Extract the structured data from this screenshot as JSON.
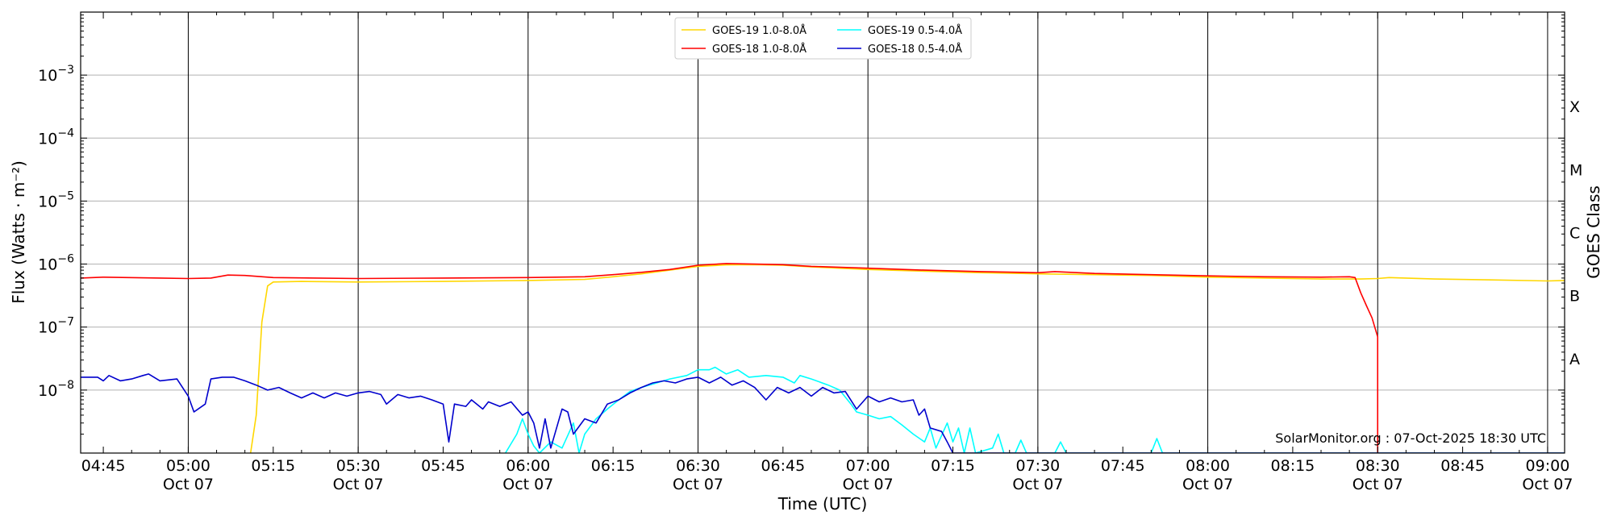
{
  "chart_data": {
    "type": "line",
    "title": "",
    "xlabel": "Time (UTC)",
    "ylabel": "Flux (Watts · m⁻²)",
    "y2label": "GOES Class",
    "yscale": "log",
    "ylim": [
      1e-09,
      0.01
    ],
    "xlim": [
      "04:41",
      "09:03"
    ],
    "grid": "horizontal",
    "legend_position": "top-center",
    "x_tick_labels": [
      {
        "t": "04:45",
        "top": "04:45",
        "bottom": ""
      },
      {
        "t": "05:00",
        "top": "05:00",
        "bottom": "Oct 07"
      },
      {
        "t": "05:15",
        "top": "05:15",
        "bottom": ""
      },
      {
        "t": "05:30",
        "top": "05:30",
        "bottom": "Oct 07"
      },
      {
        "t": "05:45",
        "top": "05:45",
        "bottom": ""
      },
      {
        "t": "06:00",
        "top": "06:00",
        "bottom": "Oct 07"
      },
      {
        "t": "06:15",
        "top": "06:15",
        "bottom": ""
      },
      {
        "t": "06:30",
        "top": "06:30",
        "bottom": "Oct 07"
      },
      {
        "t": "06:45",
        "top": "06:45",
        "bottom": ""
      },
      {
        "t": "07:00",
        "top": "07:00",
        "bottom": "Oct 07"
      },
      {
        "t": "07:15",
        "top": "07:15",
        "bottom": ""
      },
      {
        "t": "07:30",
        "top": "07:30",
        "bottom": "Oct 07"
      },
      {
        "t": "07:45",
        "top": "07:45",
        "bottom": ""
      },
      {
        "t": "08:00",
        "top": "08:00",
        "bottom": "Oct 07"
      },
      {
        "t": "08:15",
        "top": "08:15",
        "bottom": ""
      },
      {
        "t": "08:30",
        "top": "08:30",
        "bottom": "Oct 07"
      },
      {
        "t": "08:45",
        "top": "08:45",
        "bottom": ""
      },
      {
        "t": "09:00",
        "top": "09:00",
        "bottom": "Oct 07"
      }
    ],
    "vertical_lines": [
      "05:00",
      "05:30",
      "06:00",
      "06:30",
      "07:00",
      "07:30",
      "08:00",
      "08:30",
      "09:00"
    ],
    "y_tick_labels": [
      {
        "value": 1e-08,
        "base": "10",
        "exp": "−8"
      },
      {
        "value": 1e-07,
        "base": "10",
        "exp": "−7"
      },
      {
        "value": 1e-06,
        "base": "10",
        "exp": "−6"
      },
      {
        "value": 1e-05,
        "base": "10",
        "exp": "−5"
      },
      {
        "value": 0.0001,
        "base": "10",
        "exp": "−4"
      },
      {
        "value": 0.001,
        "base": "10",
        "exp": "−3"
      }
    ],
    "goes_classes": [
      {
        "label": "A",
        "value": 1e-08
      },
      {
        "label": "B",
        "value": 1e-07
      },
      {
        "label": "C",
        "value": 1e-06
      },
      {
        "label": "M",
        "value": 1e-05
      },
      {
        "label": "X",
        "value": 0.0001
      }
    ],
    "series": [
      {
        "name": "GOES-19 1.0-8.0Å",
        "color": "#ffd700",
        "points": [
          [
            "05:11",
            1e-09
          ],
          [
            "05:12",
            4e-09
          ],
          [
            "05:13",
            1.2e-07
          ],
          [
            "05:14",
            4.5e-07
          ],
          [
            "05:15",
            5.2e-07
          ],
          [
            "05:20",
            5.3e-07
          ],
          [
            "05:30",
            5.2e-07
          ],
          [
            "05:45",
            5.3e-07
          ],
          [
            "06:00",
            5.5e-07
          ],
          [
            "06:10",
            5.7e-07
          ],
          [
            "06:15",
            6.3e-07
          ],
          [
            "06:20",
            7e-07
          ],
          [
            "06:25",
            8e-07
          ],
          [
            "06:30",
            9.2e-07
          ],
          [
            "06:35",
            9.7e-07
          ],
          [
            "06:40",
            9.8e-07
          ],
          [
            "06:45",
            9.6e-07
          ],
          [
            "06:50",
            9e-07
          ],
          [
            "07:00",
            8.2e-07
          ],
          [
            "07:10",
            7.7e-07
          ],
          [
            "07:20",
            7.3e-07
          ],
          [
            "07:30",
            7e-07
          ],
          [
            "07:40",
            6.8e-07
          ],
          [
            "07:50",
            6.6e-07
          ],
          [
            "08:00",
            6.2e-07
          ],
          [
            "08:10",
            6e-07
          ],
          [
            "08:20",
            5.8e-07
          ],
          [
            "08:27",
            5.8e-07
          ],
          [
            "08:30",
            5.9e-07
          ],
          [
            "08:32",
            6.1e-07
          ],
          [
            "08:40",
            5.8e-07
          ],
          [
            "08:50",
            5.6e-07
          ],
          [
            "09:00",
            5.4e-07
          ],
          [
            "09:03",
            5.5e-07
          ]
        ]
      },
      {
        "name": "GOES-18 1.0-8.0Å",
        "color": "#ff0000",
        "points": [
          [
            "04:41",
            6e-07
          ],
          [
            "04:45",
            6.2e-07
          ],
          [
            "04:55",
            6e-07
          ],
          [
            "05:00",
            5.9e-07
          ],
          [
            "05:04",
            6e-07
          ],
          [
            "05:07",
            6.7e-07
          ],
          [
            "05:10",
            6.6e-07
          ],
          [
            "05:15",
            6.1e-07
          ],
          [
            "05:30",
            5.9e-07
          ],
          [
            "05:45",
            6e-07
          ],
          [
            "06:00",
            6.1e-07
          ],
          [
            "06:10",
            6.3e-07
          ],
          [
            "06:15",
            6.8e-07
          ],
          [
            "06:20",
            7.4e-07
          ],
          [
            "06:25",
            8.2e-07
          ],
          [
            "06:30",
            9.6e-07
          ],
          [
            "06:35",
            1.02e-06
          ],
          [
            "06:40",
            1e-06
          ],
          [
            "06:45",
            9.8e-07
          ],
          [
            "06:50",
            9.2e-07
          ],
          [
            "07:00",
            8.6e-07
          ],
          [
            "07:10",
            8e-07
          ],
          [
            "07:20",
            7.6e-07
          ],
          [
            "07:30",
            7.3e-07
          ],
          [
            "07:33",
            7.6e-07
          ],
          [
            "07:40",
            7.1e-07
          ],
          [
            "07:50",
            6.8e-07
          ],
          [
            "08:00",
            6.5e-07
          ],
          [
            "08:10",
            6.3e-07
          ],
          [
            "08:20",
            6.2e-07
          ],
          [
            "08:25",
            6.3e-07
          ],
          [
            "08:26",
            6.1e-07
          ],
          [
            "08:27",
            3.5e-07
          ],
          [
            "08:28",
            2.2e-07
          ],
          [
            "08:29",
            1.4e-07
          ],
          [
            "08:30",
            7e-08
          ],
          [
            "08:30",
            1e-09
          ]
        ]
      },
      {
        "name": "GOES-19 0.5-4.0Å",
        "color": "#00ffff",
        "points": [
          [
            "05:56",
            1e-09
          ],
          [
            "05:58",
            2e-09
          ],
          [
            "05:59",
            3.5e-09
          ],
          [
            "06:00",
            2e-09
          ],
          [
            "06:01",
            1.3e-09
          ],
          [
            "06:02",
            1e-09
          ],
          [
            "06:04",
            1.5e-09
          ],
          [
            "06:06",
            1.2e-09
          ],
          [
            "06:08",
            3e-09
          ],
          [
            "06:09",
            1e-09
          ],
          [
            "06:10",
            2e-09
          ],
          [
            "06:12",
            3.5e-09
          ],
          [
            "06:14",
            5e-09
          ],
          [
            "06:16",
            7e-09
          ],
          [
            "06:18",
            9.5e-09
          ],
          [
            "06:20",
            1.1e-08
          ],
          [
            "06:25",
            1.5e-08
          ],
          [
            "06:28",
            1.7e-08
          ],
          [
            "06:30",
            2.1e-08
          ],
          [
            "06:32",
            2.1e-08
          ],
          [
            "06:33",
            2.3e-08
          ],
          [
            "06:35",
            1.8e-08
          ],
          [
            "06:37",
            2.1e-08
          ],
          [
            "06:39",
            1.6e-08
          ],
          [
            "06:42",
            1.7e-08
          ],
          [
            "06:45",
            1.6e-08
          ],
          [
            "06:47",
            1.3e-08
          ],
          [
            "06:48",
            1.7e-08
          ],
          [
            "06:50",
            1.5e-08
          ],
          [
            "06:53",
            1.2e-08
          ],
          [
            "06:55",
            1e-08
          ],
          [
            "06:57",
            6e-09
          ],
          [
            "06:58",
            4.5e-09
          ],
          [
            "07:00",
            4e-09
          ],
          [
            "07:02",
            3.5e-09
          ],
          [
            "07:04",
            3.8e-09
          ],
          [
            "07:06",
            2.8e-09
          ],
          [
            "07:08",
            2e-09
          ],
          [
            "07:10",
            1.5e-09
          ],
          [
            "07:11",
            2.5e-09
          ],
          [
            "07:12",
            1.2e-09
          ],
          [
            "07:14",
            3e-09
          ],
          [
            "07:15",
            1.5e-09
          ],
          [
            "07:16",
            2.5e-09
          ],
          [
            "07:17",
            1e-09
          ],
          [
            "07:18",
            2.5e-09
          ],
          [
            "07:19",
            1e-09
          ],
          [
            "07:22",
            1.2e-09
          ],
          [
            "07:23",
            2e-09
          ],
          [
            "07:24",
            1e-09
          ],
          [
            "07:26",
            1e-09
          ],
          [
            "07:27",
            1.6e-09
          ],
          [
            "07:28",
            1e-09
          ],
          [
            "07:33",
            1e-09
          ],
          [
            "07:34",
            1.5e-09
          ],
          [
            "07:35",
            1e-09
          ],
          [
            "07:50",
            1e-09
          ],
          [
            "07:51",
            1.7e-09
          ],
          [
            "07:52",
            1e-09
          ],
          [
            "09:03",
            1e-09
          ]
        ]
      },
      {
        "name": "GOES-18 0.5-4.0Å",
        "color": "#0000cd",
        "points": [
          [
            "04:41",
            1.6e-08
          ],
          [
            "04:44",
            1.6e-08
          ],
          [
            "04:45",
            1.4e-08
          ],
          [
            "04:46",
            1.7e-08
          ],
          [
            "04:48",
            1.4e-08
          ],
          [
            "04:50",
            1.5e-08
          ],
          [
            "04:52",
            1.7e-08
          ],
          [
            "04:53",
            1.8e-08
          ],
          [
            "04:55",
            1.4e-08
          ],
          [
            "04:58",
            1.5e-08
          ],
          [
            "05:00",
            8e-09
          ],
          [
            "05:01",
            4.5e-09
          ],
          [
            "05:03",
            6e-09
          ],
          [
            "05:04",
            1.5e-08
          ],
          [
            "05:06",
            1.6e-08
          ],
          [
            "05:08",
            1.6e-08
          ],
          [
            "05:10",
            1.4e-08
          ],
          [
            "05:12",
            1.2e-08
          ],
          [
            "05:14",
            1e-08
          ],
          [
            "05:16",
            1.1e-08
          ],
          [
            "05:18",
            9e-09
          ],
          [
            "05:20",
            7.5e-09
          ],
          [
            "05:22",
            9e-09
          ],
          [
            "05:24",
            7.5e-09
          ],
          [
            "05:26",
            9e-09
          ],
          [
            "05:28",
            8e-09
          ],
          [
            "05:30",
            9e-09
          ],
          [
            "05:32",
            9.5e-09
          ],
          [
            "05:34",
            8.5e-09
          ],
          [
            "05:35",
            6e-09
          ],
          [
            "05:37",
            8.5e-09
          ],
          [
            "05:39",
            7.5e-09
          ],
          [
            "05:41",
            8e-09
          ],
          [
            "05:43",
            7e-09
          ],
          [
            "05:45",
            6e-09
          ],
          [
            "05:46",
            1.5e-09
          ],
          [
            "05:47",
            6e-09
          ],
          [
            "05:49",
            5.5e-09
          ],
          [
            "05:50",
            7e-09
          ],
          [
            "05:52",
            5e-09
          ],
          [
            "05:53",
            6.5e-09
          ],
          [
            "05:55",
            5.5e-09
          ],
          [
            "05:57",
            6.5e-09
          ],
          [
            "05:59",
            4e-09
          ],
          [
            "06:00",
            4.5e-09
          ],
          [
            "06:01",
            3e-09
          ],
          [
            "06:02",
            1.2e-09
          ],
          [
            "06:03",
            3.5e-09
          ],
          [
            "06:04",
            1.2e-09
          ],
          [
            "06:06",
            5e-09
          ],
          [
            "06:07",
            4.5e-09
          ],
          [
            "06:08",
            2e-09
          ],
          [
            "06:10",
            3.5e-09
          ],
          [
            "06:12",
            3e-09
          ],
          [
            "06:14",
            6e-09
          ],
          [
            "06:16",
            7e-09
          ],
          [
            "06:18",
            9e-09
          ],
          [
            "06:20",
            1.1e-08
          ],
          [
            "06:22",
            1.3e-08
          ],
          [
            "06:24",
            1.4e-08
          ],
          [
            "06:26",
            1.3e-08
          ],
          [
            "06:28",
            1.5e-08
          ],
          [
            "06:30",
            1.6e-08
          ],
          [
            "06:32",
            1.3e-08
          ],
          [
            "06:34",
            1.6e-08
          ],
          [
            "06:36",
            1.2e-08
          ],
          [
            "06:38",
            1.4e-08
          ],
          [
            "06:40",
            1.1e-08
          ],
          [
            "06:42",
            7e-09
          ],
          [
            "06:44",
            1.1e-08
          ],
          [
            "06:46",
            9e-09
          ],
          [
            "06:48",
            1.1e-08
          ],
          [
            "06:50",
            8e-09
          ],
          [
            "06:52",
            1.1e-08
          ],
          [
            "06:54",
            9e-09
          ],
          [
            "06:56",
            9.5e-09
          ],
          [
            "06:58",
            5e-09
          ],
          [
            "07:00",
            8e-09
          ],
          [
            "07:02",
            6.5e-09
          ],
          [
            "07:04",
            7.5e-09
          ],
          [
            "07:06",
            6.5e-09
          ],
          [
            "07:08",
            7e-09
          ],
          [
            "07:09",
            4e-09
          ],
          [
            "07:10",
            5e-09
          ],
          [
            "07:11",
            2.5e-09
          ],
          [
            "07:13",
            2.2e-09
          ],
          [
            "07:14",
            1.5e-09
          ],
          [
            "07:15",
            1e-09
          ],
          [
            "09:03",
            1e-09
          ]
        ]
      }
    ],
    "annotation": "SolarMonitor.org : 07-Oct-2025 18:30 UTC"
  }
}
